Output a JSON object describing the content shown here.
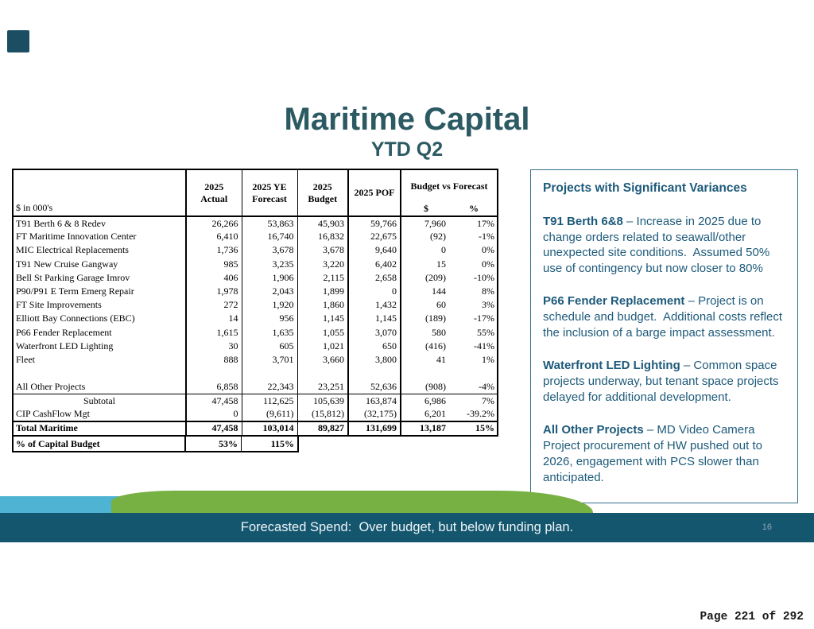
{
  "slide": {
    "title": "Maritime Capital",
    "subtitle": "YTD Q2",
    "banner_text": "Forecasted Spend:  Over budget, but below funding plan.",
    "slide_number": "16",
    "page_indicator": "Page 221 of 292"
  },
  "colors": {
    "title_teal": "#2b5a62",
    "banner_teal": "#15566f",
    "wave_green": "#77b043",
    "wave_blue": "#4fb3d3",
    "variance_text": "#1d5a7a",
    "corner_square": "#1c4e63"
  },
  "table": {
    "unit_label": "$ in 000's",
    "headers": {
      "actual": "2025\nActual",
      "ye_forecast": "2025 YE\nForecast",
      "budget": "2025\nBudget",
      "pof": "2025 POF",
      "bvf": "Budget vs Forecast",
      "bvf_dollar": "$",
      "bvf_pct": "%"
    },
    "rows": [
      {
        "type": "data",
        "label": "T91 Berth 6 & 8 Redev",
        "values": [
          "26,266",
          "53,863",
          "45,903",
          "59,766",
          "7,960",
          "17%"
        ]
      },
      {
        "type": "data",
        "label": "FT Maritime Innovation Center",
        "values": [
          "6,410",
          "16,740",
          "16,832",
          "22,675",
          "(92)",
          "-1%"
        ]
      },
      {
        "type": "data",
        "label": "MIC Electrical Replacements",
        "values": [
          "1,736",
          "3,678",
          "3,678",
          "9,640",
          "0",
          "0%"
        ]
      },
      {
        "type": "data",
        "label": "T91 New Cruise Gangway",
        "values": [
          "985",
          "3,235",
          "3,220",
          "6,402",
          "15",
          "0%"
        ]
      },
      {
        "type": "data",
        "label": "Bell St Parking Garage Imrov",
        "values": [
          "406",
          "1,906",
          "2,115",
          "2,658",
          "(209)",
          "-10%"
        ]
      },
      {
        "type": "data",
        "label": "P90/P91 E Term Emerg Repair",
        "values": [
          "1,978",
          "2,043",
          "1,899",
          "0",
          "144",
          "8%"
        ]
      },
      {
        "type": "data",
        "label": "FT Site Improvements",
        "values": [
          "272",
          "1,920",
          "1,860",
          "1,432",
          "60",
          "3%"
        ]
      },
      {
        "type": "data",
        "label": "Elliott Bay Connections (EBC)",
        "values": [
          "14",
          "956",
          "1,145",
          "1,145",
          "(189)",
          "-17%"
        ]
      },
      {
        "type": "data",
        "label": "P66 Fender Replacement",
        "values": [
          "1,615",
          "1,635",
          "1,055",
          "3,070",
          "580",
          "55%"
        ]
      },
      {
        "type": "data",
        "label": "Waterfront LED Lighting",
        "values": [
          "30",
          "605",
          "1,021",
          "650",
          "(416)",
          "-41%"
        ]
      },
      {
        "type": "data",
        "label": "Fleet",
        "values": [
          "888",
          "3,701",
          "3,660",
          "3,800",
          "41",
          "1%"
        ]
      },
      {
        "type": "blank",
        "label": "",
        "values": [
          "",
          "",
          "",
          "",
          "",
          ""
        ]
      },
      {
        "type": "data",
        "label": "All Other Projects",
        "values": [
          "6,858",
          "22,343",
          "23,251",
          "52,636",
          "(908)",
          "-4%"
        ]
      },
      {
        "type": "subtotal",
        "label": "Subtotal",
        "values": [
          "47,458",
          "112,625",
          "105,639",
          "163,874",
          "6,986",
          "7%"
        ]
      },
      {
        "type": "data",
        "label": "CIP CashFlow Mgt",
        "values": [
          "0",
          "(9,611)",
          "(15,812)",
          "(32,175)",
          "6,201",
          "-39.2%"
        ]
      },
      {
        "type": "total",
        "label": "Total Maritime",
        "values": [
          "47,458",
          "103,014",
          "89,827",
          "131,699",
          "13,187",
          "15%"
        ]
      }
    ],
    "pct_row": {
      "label": "% of Capital Budget",
      "actual": "53%",
      "ye_forecast": "115%"
    }
  },
  "variances": {
    "heading": "Projects with Significant Variances",
    "items": [
      {
        "title": "T91 Berth 6&8",
        "text": " – Increase in 2025 due to change orders related to seawall/other unexpected site conditions.  Assumed 50% use of contingency but now closer to 80%"
      },
      {
        "title": "P66 Fender Replacement",
        "text": " – Project is on schedule and budget.  Additional costs reflect the inclusion of a barge impact assessment."
      },
      {
        "title": "Waterfront LED Lighting",
        "text": " – Common space projects underway, but tenant space projects delayed for additional development."
      },
      {
        "title": "All Other Projects",
        "text": " – MD Video Camera Project procurement of HW pushed out to 2026, engagement with PCS slower than anticipated."
      }
    ]
  }
}
